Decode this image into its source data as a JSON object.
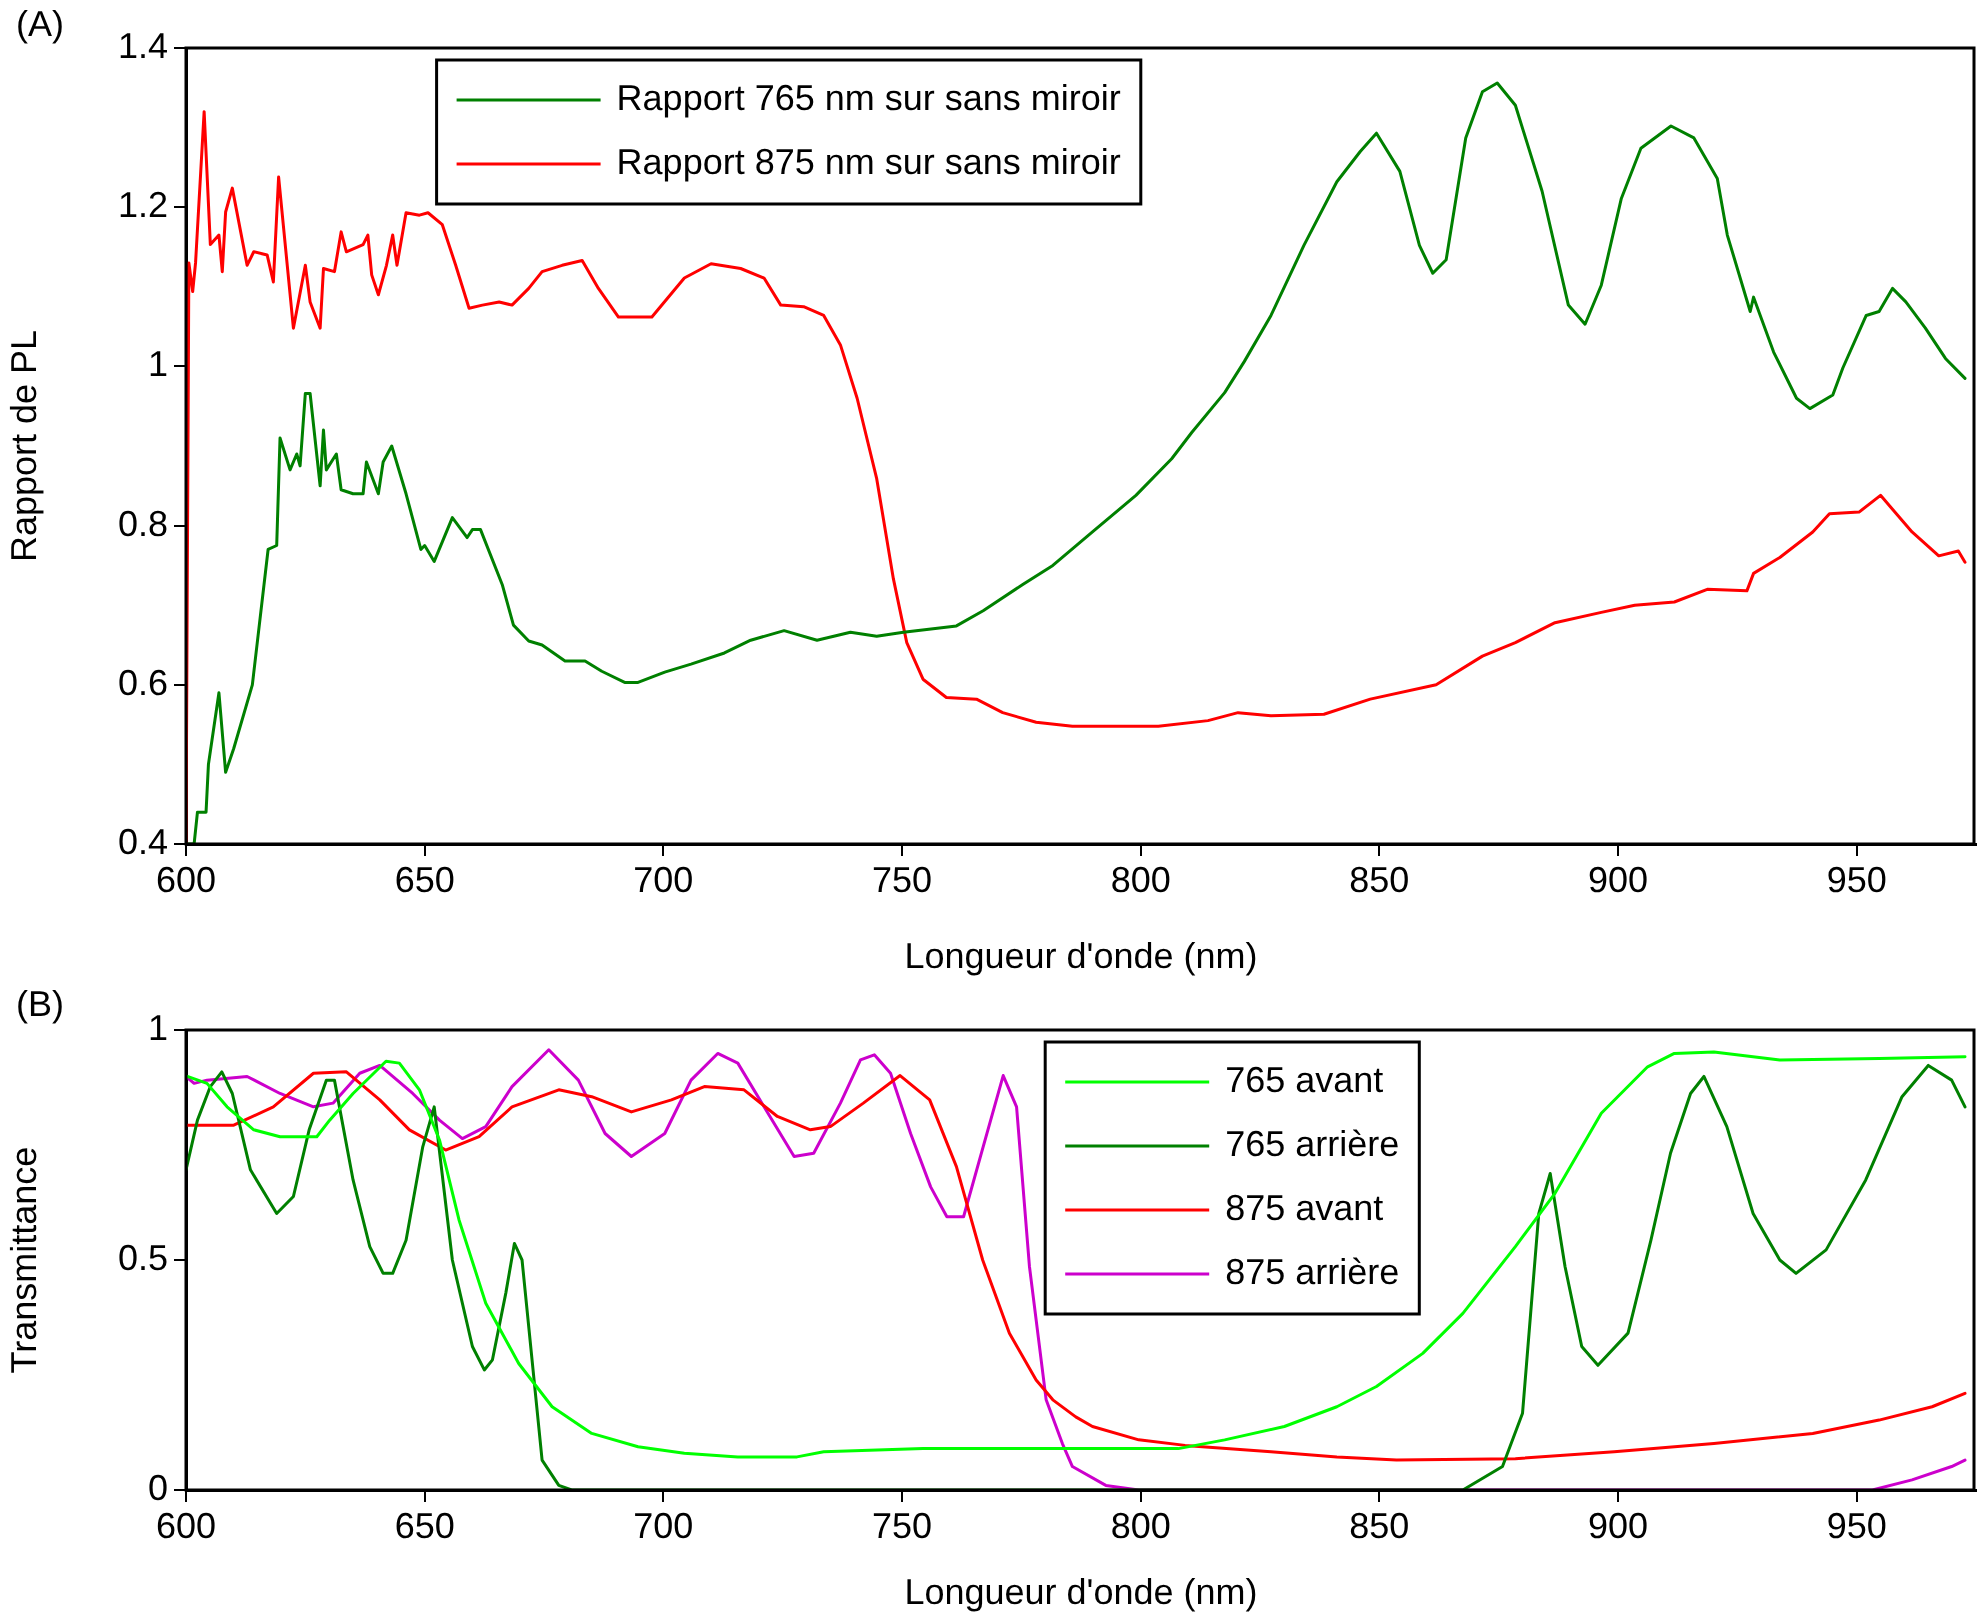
{
  "chart_data": [
    {
      "type": "line",
      "xlabel": "Longueur d'onde (nm)",
      "ylabel": "Rapport de PL",
      "annotations": [
        "(A)"
      ],
      "xlim": [
        600,
        975
      ],
      "xticks": [
        600,
        650,
        700,
        750,
        800,
        850,
        900,
        950
      ],
      "ylim": [
        0.4,
        1.4
      ],
      "yticks": [
        0.4,
        0.6,
        0.8,
        1,
        1.2,
        1.4
      ],
      "legend": "top",
      "marker": "none",
      "line_style": "solid",
      "series": [
        {
          "name": "Rapport 765 nm sur sans miroir",
          "color": "#008000",
          "x": [
            600,
            601.7,
            602.4,
            604.2,
            604.7,
            606.9,
            608.3,
            610,
            613.9,
            617.2,
            619,
            619.7,
            621.8,
            623.2,
            623.9,
            625,
            626,
            628.1,
            628.8,
            629.4,
            631.5,
            632.5,
            635,
            637.1,
            637.8,
            640.3,
            641.3,
            643.1,
            646.1,
            649.2,
            650,
            652,
            655.8,
            658.9,
            660,
            661.7,
            666.3,
            668.6,
            671.8,
            674.6,
            679.4,
            683.6,
            687.1,
            691.9,
            694.7,
            700.3,
            705.8,
            712.8,
            718.3,
            725.3,
            732.2,
            739.2,
            744.7,
            750.3,
            761.4,
            767,
            775.3,
            781.6,
            789.9,
            799,
            806.5,
            810.7,
            817.6,
            821.7,
            827.3,
            834.2,
            841.1,
            846,
            849.4,
            854.3,
            858.4,
            861.2,
            864,
            868.1,
            871.6,
            874.7,
            878.5,
            884.1,
            889.6,
            893.1,
            896.5,
            900.7,
            904.8,
            911.1,
            915.9,
            920.8,
            922.9,
            927.7,
            928.4,
            932.6,
            937.4,
            940.2,
            945,
            947.1,
            952,
            954.7,
            957.5,
            960.3,
            964.4,
            968.6,
            972.7
          ],
          "values": [
            0.4,
            0.4,
            0.44,
            0.44,
            0.5,
            0.59,
            0.49,
            0.52,
            0.6,
            0.77,
            0.775,
            0.91,
            0.87,
            0.89,
            0.875,
            0.966,
            0.966,
            0.85,
            0.92,
            0.87,
            0.89,
            0.845,
            0.84,
            0.84,
            0.88,
            0.84,
            0.88,
            0.9,
            0.84,
            0.77,
            0.775,
            0.755,
            0.81,
            0.785,
            0.795,
            0.795,
            0.725,
            0.675,
            0.655,
            0.65,
            0.63,
            0.63,
            0.617,
            0.603,
            0.603,
            0.616,
            0.626,
            0.64,
            0.656,
            0.668,
            0.656,
            0.666,
            0.661,
            0.666,
            0.674,
            0.693,
            0.726,
            0.75,
            0.792,
            0.838,
            0.884,
            0.917,
            0.967,
            1.006,
            1.064,
            1.152,
            1.232,
            1.27,
            1.293,
            1.245,
            1.152,
            1.117,
            1.134,
            1.287,
            1.345,
            1.356,
            1.328,
            1.22,
            1.077,
            1.053,
            1.102,
            1.211,
            1.274,
            1.302,
            1.287,
            1.236,
            1.165,
            1.069,
            1.087,
            1.018,
            0.96,
            0.947,
            0.964,
            0.998,
            1.064,
            1.069,
            1.098,
            1.081,
            1.048,
            1.01,
            0.985
          ]
        },
        {
          "name": "Rapport 875 nm sur sans miroir",
          "color": "#ff0000",
          "x": [
            600,
            600.6,
            601.4,
            602,
            603.8,
            605.1,
            606.9,
            607.6,
            608.3,
            609.7,
            612.8,
            614.2,
            617,
            618.3,
            619.4,
            622.5,
            625,
            626,
            628.1,
            628.8,
            631.1,
            632.5,
            633.6,
            637.1,
            638.1,
            638.9,
            640.3,
            642,
            643.3,
            644.2,
            646.1,
            648.9,
            650.7,
            653.7,
            656.5,
            659.3,
            662.1,
            665.6,
            668.3,
            671.8,
            674.6,
            678.8,
            683,
            686.4,
            690.6,
            697.6,
            704.4,
            710,
            716.2,
            721.1,
            724.6,
            729.4,
            733.6,
            737.1,
            740.6,
            744.7,
            748.2,
            751,
            754.4,
            759.3,
            765.6,
            771.1,
            778.1,
            785.7,
            803.7,
            814.1,
            820.4,
            827.3,
            838.4,
            848.1,
            861.9,
            871.6,
            878.5,
            886.8,
            896.5,
            903.5,
            911.8,
            918.7,
            927,
            928.4,
            933.9,
            940.8,
            944.3,
            950.5,
            955,
            961.6,
            967.2,
            971.3,
            972.7
          ],
          "values": [
            0.4,
            1.13,
            1.094,
            1.13,
            1.32,
            1.153,
            1.165,
            1.119,
            1.194,
            1.224,
            1.127,
            1.144,
            1.14,
            1.106,
            1.238,
            1.048,
            1.127,
            1.081,
            1.048,
            1.123,
            1.119,
            1.169,
            1.144,
            1.153,
            1.165,
            1.115,
            1.09,
            1.127,
            1.165,
            1.127,
            1.193,
            1.19,
            1.193,
            1.178,
            1.127,
            1.073,
            1.077,
            1.081,
            1.077,
            1.098,
            1.119,
            1.127,
            1.133,
            1.098,
            1.062,
            1.062,
            1.111,
            1.129,
            1.123,
            1.111,
            1.077,
            1.075,
            1.064,
            1.027,
            0.96,
            0.859,
            0.733,
            0.653,
            0.607,
            0.584,
            0.582,
            0.565,
            0.553,
            0.548,
            0.548,
            0.555,
            0.565,
            0.561,
            0.563,
            0.582,
            0.6,
            0.636,
            0.653,
            0.678,
            0.691,
            0.7,
            0.704,
            0.72,
            0.718,
            0.74,
            0.76,
            0.792,
            0.815,
            0.817,
            0.838,
            0.792,
            0.762,
            0.768,
            0.754
          ]
        }
      ]
    },
    {
      "type": "line",
      "xlabel": "Longueur d'onde (nm)",
      "ylabel": "Transmittance",
      "annotations": [
        "(B)"
      ],
      "xlim": [
        600,
        975
      ],
      "xticks": [
        600,
        650,
        700,
        750,
        800,
        850,
        900,
        950
      ],
      "ylim": [
        0,
        1
      ],
      "yticks": [
        0,
        0.5,
        1
      ],
      "legend": "top",
      "marker": "none",
      "line_style": "solid",
      "series": [
        {
          "name": "765 avant",
          "color": "#00ff00",
          "x": [
            600,
            604.4,
            608.6,
            614.2,
            619.7,
            627.4,
            630.1,
            635,
            641.9,
            644.7,
            648.9,
            653.1,
            657.2,
            662.8,
            669.7,
            676.7,
            685,
            694.7,
            704.4,
            715.6,
            728,
            733.6,
            754.4,
            786.4,
            807.9,
            817.6,
            830.1,
            841.1,
            849.4,
            859.1,
            867.5,
            878.5,
            886.8,
            896.5,
            906.2,
            911.8,
            920.1,
            933.9,
            954.7,
            972.7
          ],
          "values": [
            0.9,
            0.884,
            0.833,
            0.783,
            0.768,
            0.768,
            0.804,
            0.862,
            0.932,
            0.928,
            0.87,
            0.761,
            0.587,
            0.406,
            0.275,
            0.181,
            0.123,
            0.094,
            0.08,
            0.072,
            0.072,
            0.083,
            0.09,
            0.09,
            0.09,
            0.109,
            0.138,
            0.181,
            0.225,
            0.297,
            0.384,
            0.529,
            0.645,
            0.819,
            0.92,
            0.949,
            0.952,
            0.935,
            0.938,
            0.942
          ]
        },
        {
          "name": "765 arrière",
          "color": "#008000",
          "x": [
            600,
            602.4,
            605.1,
            607.5,
            609.7,
            613.5,
            619,
            622.5,
            625.8,
            629.4,
            631.1,
            635,
            638.5,
            641.3,
            643.3,
            646.1,
            649.6,
            652,
            655.8,
            660,
            662.5,
            664.2,
            667,
            668.8,
            670.4,
            674.6,
            678.1,
            680.8,
            867.5,
            875.8,
            880,
            883.4,
            885.8,
            888.9,
            892.4,
            895.8,
            902.1,
            906.9,
            911,
            915.2,
            918,
            922.8,
            928.3,
            933.9,
            937.3,
            943.6,
            951.9,
            959.5,
            965,
            969.9,
            972.7
          ],
          "values": [
            0.696,
            0.804,
            0.877,
            0.909,
            0.862,
            0.696,
            0.601,
            0.638,
            0.783,
            0.891,
            0.891,
            0.674,
            0.529,
            0.471,
            0.471,
            0.543,
            0.746,
            0.833,
            0.5,
            0.312,
            0.261,
            0.283,
            0.428,
            0.536,
            0.5,
            0.065,
            0.01,
            0,
            0,
            0.051,
            0.167,
            0.601,
            0.688,
            0.486,
            0.312,
            0.271,
            0.341,
            0.543,
            0.732,
            0.862,
            0.899,
            0.79,
            0.601,
            0.5,
            0.471,
            0.522,
            0.674,
            0.855,
            0.923,
            0.891,
            0.833
          ]
        },
        {
          "name": "875 avant",
          "color": "#ff0000",
          "x": [
            600,
            610,
            618.3,
            626.7,
            633.6,
            640.6,
            646.8,
            654.4,
            661.4,
            668.3,
            678.1,
            685,
            693.3,
            701.7,
            708.6,
            716.9,
            723.9,
            730.8,
            735,
            741.9,
            749.6,
            755.8,
            761.4,
            766.9,
            772.5,
            778.1,
            781.6,
            786.4,
            789.9,
            799.6,
            809.3,
            827.3,
            841.1,
            853.6,
            878.5,
            899.2,
            920.1,
            940.8,
            954.7,
            965.8,
            972.7
          ],
          "values": [
            0.793,
            0.793,
            0.833,
            0.906,
            0.909,
            0.848,
            0.783,
            0.739,
            0.768,
            0.833,
            0.87,
            0.855,
            0.822,
            0.848,
            0.877,
            0.87,
            0.812,
            0.783,
            0.79,
            0.841,
            0.901,
            0.848,
            0.703,
            0.5,
            0.341,
            0.239,
            0.196,
            0.159,
            0.138,
            0.109,
            0.097,
            0.083,
            0.072,
            0.065,
            0.068,
            0.083,
            0.101,
            0.123,
            0.152,
            0.181,
            0.21
          ]
        },
        {
          "name": "875 arrière",
          "color": "#cc00cc",
          "x": [
            600,
            601.7,
            604.4,
            612.8,
            619.7,
            626.7,
            630.8,
            636.4,
            640.6,
            647.5,
            653.1,
            657.9,
            662.8,
            668.3,
            676,
            682.2,
            687.8,
            693.3,
            700.3,
            705.8,
            711.4,
            715.6,
            721.1,
            727.4,
            731.5,
            737.1,
            741.3,
            744.2,
            747.6,
            751.8,
            756,
            759.4,
            762.9,
            767,
            771.2,
            774,
            776.7,
            780.2,
            783.6,
            785.7,
            792.7,
            799.6,
            953.3,
            961.6,
            969.9,
            972.7
          ],
          "values": [
            0.899,
            0.884,
            0.891,
            0.899,
            0.862,
            0.833,
            0.841,
            0.906,
            0.923,
            0.862,
            0.804,
            0.764,
            0.79,
            0.877,
            0.957,
            0.891,
            0.775,
            0.725,
            0.775,
            0.891,
            0.949,
            0.928,
            0.833,
            0.725,
            0.732,
            0.841,
            0.935,
            0.946,
            0.906,
            0.775,
            0.659,
            0.594,
            0.594,
            0.746,
            0.901,
            0.833,
            0.486,
            0.196,
            0.101,
            0.051,
            0.01,
            0,
            0,
            0.022,
            0.051,
            0.065
          ]
        }
      ]
    }
  ]
}
